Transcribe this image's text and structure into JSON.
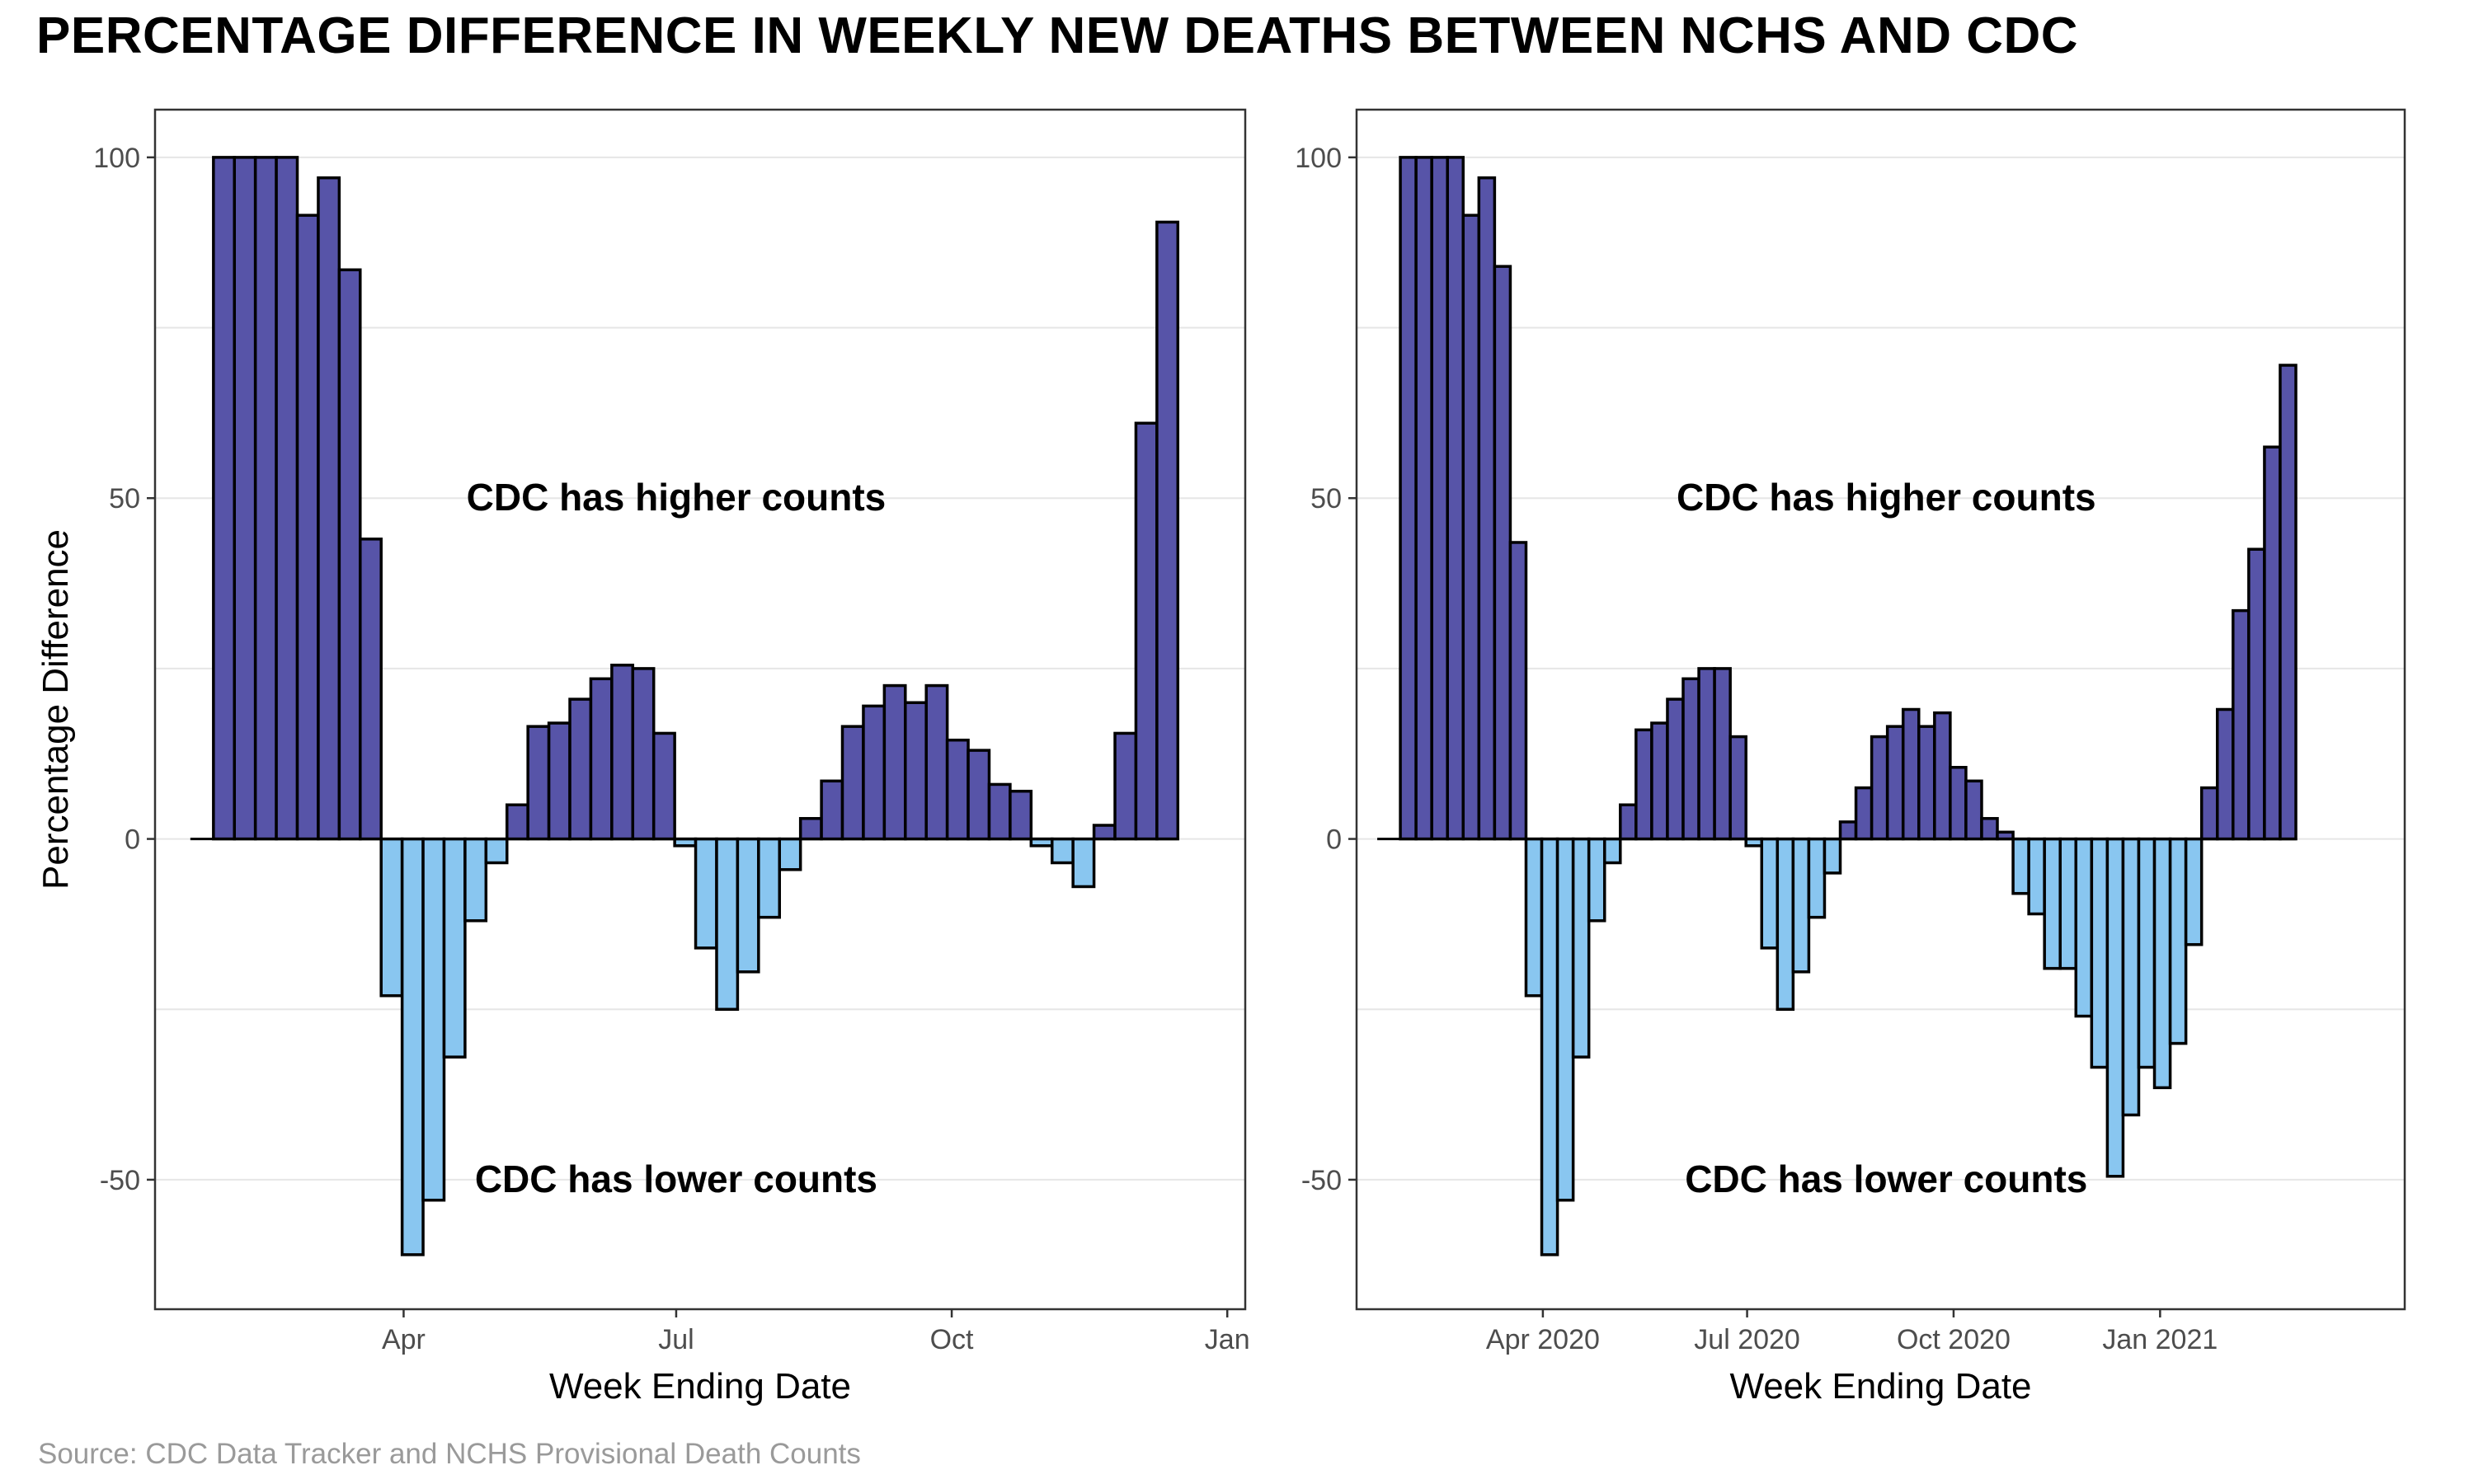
{
  "title": "PERCENTAGE DIFFERENCE IN WEEKLY NEW DEATHS BETWEEN NCHS AND CDC",
  "source": "Source: CDC Data Tracker and NCHS Provisional Death Counts",
  "colors": {
    "positive": "#5754A8",
    "negative": "#89C6F0",
    "outline": "#000000",
    "grid": "#e6e6e6"
  },
  "chart_data": [
    {
      "type": "bar",
      "title": "",
      "xlabel": "Week Ending Date",
      "ylabel": "Percentage Difference",
      "ylim": [
        -69,
        107
      ],
      "yticks": [
        -50,
        0,
        50,
        100
      ],
      "xlim": [
        "2020-01-09",
        "2021-01-07"
      ],
      "xticks": [
        {
          "date": "2020-04-01",
          "label": "Apr"
        },
        {
          "date": "2020-07-01",
          "label": "Jul"
        },
        {
          "date": "2020-10-01",
          "label": "Oct"
        },
        {
          "date": "2021-01-01",
          "label": "Jan"
        }
      ],
      "grid": true,
      "annotations": [
        {
          "text": "CDC has higher counts",
          "x": "2020-07-01",
          "y": 50
        },
        {
          "text": "CDC has lower counts",
          "x": "2020-07-01",
          "y": -50
        }
      ],
      "x": [
        "2020-02-01",
        "2020-02-08",
        "2020-02-15",
        "2020-02-22",
        "2020-02-29",
        "2020-03-07",
        "2020-03-14",
        "2020-03-21",
        "2020-03-28",
        "2020-04-04",
        "2020-04-11",
        "2020-04-18",
        "2020-04-25",
        "2020-05-02",
        "2020-05-09",
        "2020-05-16",
        "2020-05-23",
        "2020-05-30",
        "2020-06-06",
        "2020-06-13",
        "2020-06-20",
        "2020-06-27",
        "2020-07-04",
        "2020-07-11",
        "2020-07-18",
        "2020-07-25",
        "2020-08-01",
        "2020-08-08",
        "2020-08-15",
        "2020-08-22",
        "2020-08-29",
        "2020-09-05",
        "2020-09-12",
        "2020-09-19",
        "2020-09-26",
        "2020-10-03",
        "2020-10-10",
        "2020-10-17",
        "2020-10-24",
        "2020-10-31",
        "2020-11-07",
        "2020-11-14",
        "2020-11-21",
        "2020-11-28",
        "2020-12-05",
        "2020-12-12",
        "2020-12-19"
      ],
      "values": [
        100,
        100,
        100,
        100,
        91.5,
        97,
        83.5,
        44,
        -23,
        -61,
        -53,
        -32,
        -12,
        -3.5,
        5,
        16.5,
        17,
        20.5,
        23.5,
        25.5,
        25,
        15.5,
        -1,
        -16,
        -25,
        -19.5,
        -11.5,
        -4.5,
        3,
        8.5,
        16.5,
        19.5,
        22.5,
        20,
        22.5,
        14.5,
        13,
        8,
        7,
        -1,
        -3.5,
        -7,
        2,
        15.5,
        61,
        90.5,
        null
      ]
    },
    {
      "type": "bar",
      "title": "",
      "xlabel": "Week Ending Date",
      "ylabel": "",
      "ylim": [
        -69,
        107
      ],
      "yticks": [
        -50,
        0,
        50,
        100
      ],
      "xlim": [
        "2020-01-09",
        "2021-04-20"
      ],
      "xticks": [
        {
          "date": "2020-04-01",
          "label": "Apr 2020"
        },
        {
          "date": "2020-07-01",
          "label": "Jul 2020"
        },
        {
          "date": "2020-10-01",
          "label": "Oct 2020"
        },
        {
          "date": "2021-01-01",
          "label": "Jan 2021"
        }
      ],
      "grid": true,
      "annotations": [
        {
          "text": "CDC has higher counts",
          "x": "2020-09-01",
          "y": 50
        },
        {
          "text": "CDC has lower counts",
          "x": "2020-09-01",
          "y": -50
        }
      ],
      "x": [
        "2020-02-01",
        "2020-02-08",
        "2020-02-15",
        "2020-02-22",
        "2020-02-29",
        "2020-03-07",
        "2020-03-14",
        "2020-03-21",
        "2020-03-28",
        "2020-04-04",
        "2020-04-11",
        "2020-04-18",
        "2020-04-25",
        "2020-05-02",
        "2020-05-09",
        "2020-05-16",
        "2020-05-23",
        "2020-05-30",
        "2020-06-06",
        "2020-06-13",
        "2020-06-20",
        "2020-06-27",
        "2020-07-04",
        "2020-07-11",
        "2020-07-18",
        "2020-07-25",
        "2020-08-01",
        "2020-08-08",
        "2020-08-15",
        "2020-08-22",
        "2020-08-29",
        "2020-09-05",
        "2020-09-12",
        "2020-09-19",
        "2020-09-26",
        "2020-10-03",
        "2020-10-10",
        "2020-10-17",
        "2020-10-24",
        "2020-10-31",
        "2020-11-07",
        "2020-11-14",
        "2020-11-21",
        "2020-11-28",
        "2020-12-05",
        "2020-12-12",
        "2020-12-19",
        "2020-12-26",
        "2021-01-02",
        "2021-01-09",
        "2021-01-16",
        "2021-01-23",
        "2021-01-30",
        "2021-02-06",
        "2021-02-13",
        "2021-02-20",
        "2021-02-27",
        "2021-03-06",
        "2021-03-13",
        "2021-03-20"
      ],
      "values": [
        100,
        100,
        100,
        100,
        91.5,
        97,
        84,
        43.5,
        -23,
        -61,
        -53,
        -32,
        -12,
        -3.5,
        5,
        16,
        17,
        20.5,
        23.5,
        25,
        25,
        15,
        -1,
        -16,
        -25,
        -19.5,
        -11.5,
        -5,
        2.5,
        7.5,
        15,
        16.5,
        19,
        16.5,
        18.5,
        10.5,
        8.5,
        3,
        1,
        -8,
        -11,
        -19,
        -19,
        -26,
        -33.5,
        -49.5,
        -40.5,
        -33.5,
        -36.5,
        -30,
        -15.5,
        7.5,
        19,
        33.5,
        42.5,
        57.5,
        69.5,
        null,
        null,
        null
      ]
    }
  ]
}
